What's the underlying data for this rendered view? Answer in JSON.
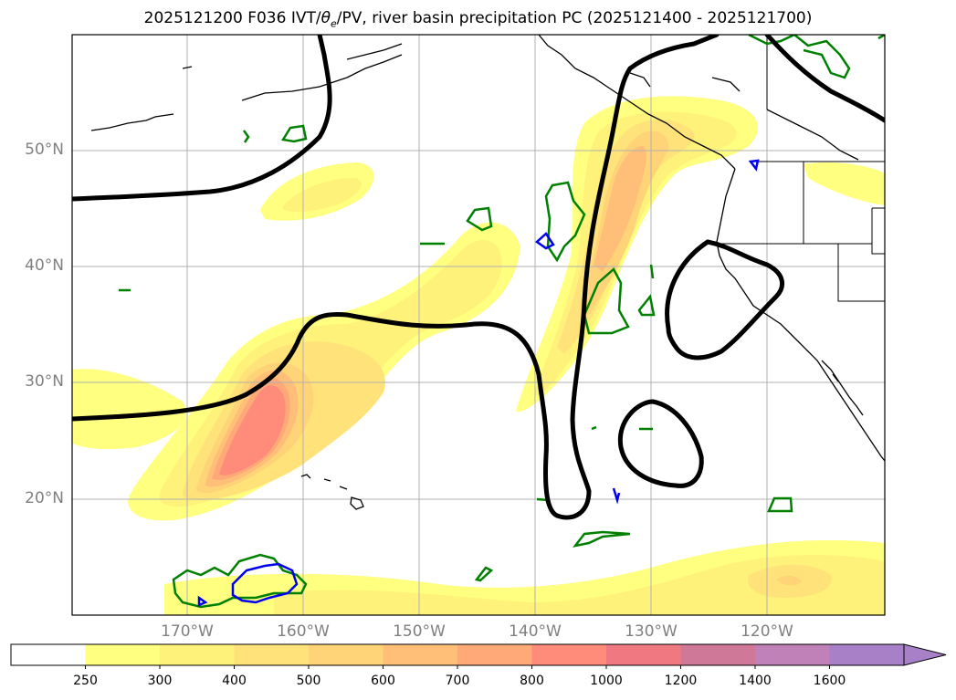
{
  "title": "2025121200 F036 IVT/θe/PV, river basin precipitation PC (2025121400 - 2025121700)",
  "map": {
    "lat_labels": [
      "50°N",
      "40°N",
      "30°N",
      "20°N"
    ],
    "lon_labels": [
      "170°W",
      "160°W",
      "150°W",
      "140°W",
      "130°W",
      "120°W"
    ]
  },
  "colorbar": {
    "levels": [
      "250",
      "300",
      "400",
      "500",
      "600",
      "700",
      "800",
      "1000",
      "1200",
      "1400",
      "1600"
    ],
    "colors": [
      "#ffffff",
      "#ffff80",
      "#fff27a",
      "#ffe37a",
      "#ffd478",
      "#ffbf78",
      "#ffa878",
      "#ff8c7a",
      "#f07880",
      "#d07898",
      "#c080b8",
      "#a880c8"
    ],
    "extend": "max"
  },
  "colors": {
    "ivt_contour": "#000000",
    "theta_e": "#008000",
    "pv": "#0000ee",
    "coastline": "#000000",
    "grid": "#b0b0b0"
  }
}
